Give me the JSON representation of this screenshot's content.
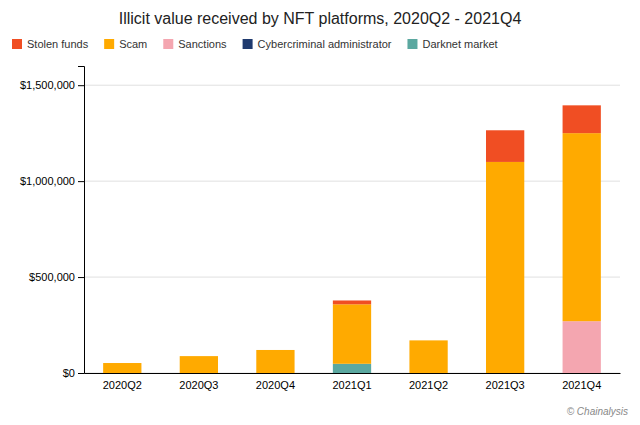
{
  "chart_data": {
    "type": "bar",
    "stacked": true,
    "title": "Illicit value received by NFT platforms, 2020Q2 - 2021Q4",
    "categories": [
      "2020Q2",
      "2020Q3",
      "2020Q4",
      "2021Q1",
      "2021Q2",
      "2021Q3",
      "2021Q4"
    ],
    "series": [
      {
        "name": "Darknet market",
        "color": "#5ba8a0",
        "values": [
          0,
          0,
          0,
          48000,
          0,
          0,
          0
        ]
      },
      {
        "name": "Cybercriminal administrator",
        "color": "#1f3a6e",
        "values": [
          0,
          0,
          0,
          0,
          0,
          0,
          0
        ]
      },
      {
        "name": "Sanctions",
        "color": "#f4a6b0",
        "values": [
          0,
          0,
          0,
          0,
          0,
          0,
          270000
        ]
      },
      {
        "name": "Scam",
        "color": "#ffaa00",
        "values": [
          52000,
          88000,
          120000,
          310000,
          170000,
          1100000,
          980000
        ]
      },
      {
        "name": "Stolen funds",
        "color": "#f04e23",
        "values": [
          0,
          0,
          0,
          20000,
          0,
          165000,
          145000
        ]
      }
    ],
    "ylim": [
      0,
      1600000
    ],
    "yticks": [
      {
        "value": 0,
        "label": "$0"
      },
      {
        "value": 500000,
        "label": "$500,000"
      },
      {
        "value": 1000000,
        "label": "$1,000,000"
      },
      {
        "value": 1500000,
        "label": "$1,500,000"
      }
    ],
    "grid": true,
    "legend": "upper left",
    "annotations": [
      "© Chainalysis"
    ]
  }
}
